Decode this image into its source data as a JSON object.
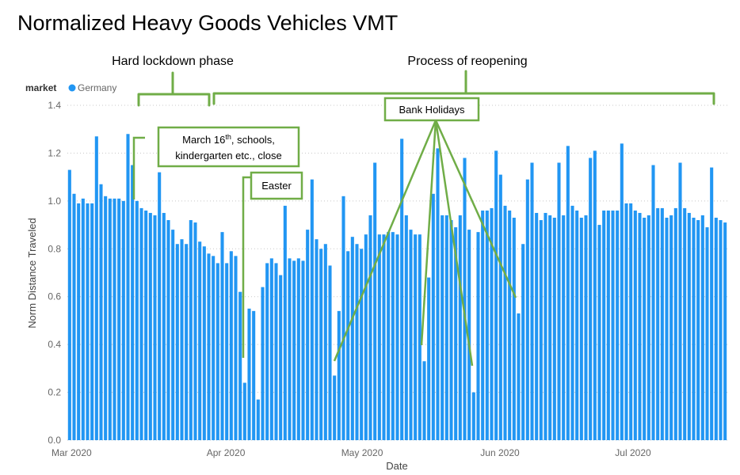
{
  "page": {
    "title": "Normalized Heavy Goods Vehicles VMT"
  },
  "annotations": {
    "phase_lockdown": "Hard lockdown phase",
    "phase_reopening": "Process of reopening",
    "bank_holidays": "Bank Holidays",
    "march16_line1": "March 16",
    "march16_sup": "th",
    "march16_line1_rest": ", schools,",
    "march16_line2": "kindergarten etc., close",
    "easter": "Easter"
  },
  "colors": {
    "bar": "#2196f3",
    "annotation": "#70ad47"
  },
  "chart_data": {
    "type": "bar",
    "title": "Normalized Heavy Goods Vehicles VMT",
    "xlabel": "Date",
    "ylabel": "Norm Distance Traveled",
    "ylim": [
      0,
      1.4
    ],
    "y_ticks": [
      "0.0",
      "0.2",
      "0.4",
      "0.6",
      "0.8",
      "1.0",
      "1.2",
      "1.4"
    ],
    "x_ticks": [
      "Mar 2020",
      "Apr 2020",
      "May 2020",
      "Jun 2020",
      "Jul 2020"
    ],
    "grid": true,
    "legend": {
      "title": "market",
      "position": "top-left",
      "entries": [
        {
          "name": "Germany",
          "color": "#2196f3"
        }
      ]
    },
    "start_date": "2020-03-01",
    "end_date": "2020-07-31",
    "series": [
      {
        "name": "Germany",
        "values": [
          1.13,
          1.03,
          0.99,
          1.01,
          0.99,
          0.99,
          1.27,
          1.07,
          1.02,
          1.01,
          1.01,
          1.01,
          1.0,
          1.28,
          1.15,
          1.0,
          0.97,
          0.96,
          0.95,
          0.94,
          1.12,
          0.95,
          0.92,
          0.88,
          0.82,
          0.84,
          0.82,
          0.92,
          0.91,
          0.83,
          0.81,
          0.78,
          0.77,
          0.74,
          0.87,
          0.74,
          0.79,
          0.77,
          0.62,
          0.24,
          0.55,
          0.54,
          0.17,
          0.64,
          0.74,
          0.76,
          0.74,
          0.69,
          0.98,
          0.76,
          0.75,
          0.76,
          0.75,
          0.88,
          1.09,
          0.84,
          0.8,
          0.82,
          0.73,
          0.27,
          0.54,
          1.02,
          0.79,
          0.85,
          0.82,
          0.8,
          0.86,
          0.94,
          1.16,
          0.86,
          0.86,
          0.87,
          0.87,
          0.86,
          1.26,
          0.94,
          0.88,
          0.86,
          0.86,
          0.33,
          0.68,
          1.03,
          1.22,
          0.94,
          0.94,
          0.92,
          0.89,
          0.94,
          1.18,
          0.88,
          0.2,
          0.87,
          0.96,
          0.96,
          0.97,
          1.21,
          1.11,
          0.98,
          0.96,
          0.93,
          0.53,
          0.82,
          1.09,
          1.16,
          0.95,
          0.92,
          0.95,
          0.94,
          0.93,
          1.16,
          0.94,
          1.23,
          0.98,
          0.96,
          0.93,
          0.94,
          1.18,
          1.21,
          0.9,
          0.96,
          0.96,
          0.96,
          0.96,
          1.24,
          0.99,
          0.99,
          0.96,
          0.95,
          0.93,
          0.94,
          1.15,
          0.97,
          0.97,
          0.93,
          0.94,
          0.97,
          1.16,
          0.97,
          0.95,
          0.93,
          0.92,
          0.94,
          0.89,
          1.14,
          0.93,
          0.92,
          0.91
        ]
      }
    ]
  }
}
